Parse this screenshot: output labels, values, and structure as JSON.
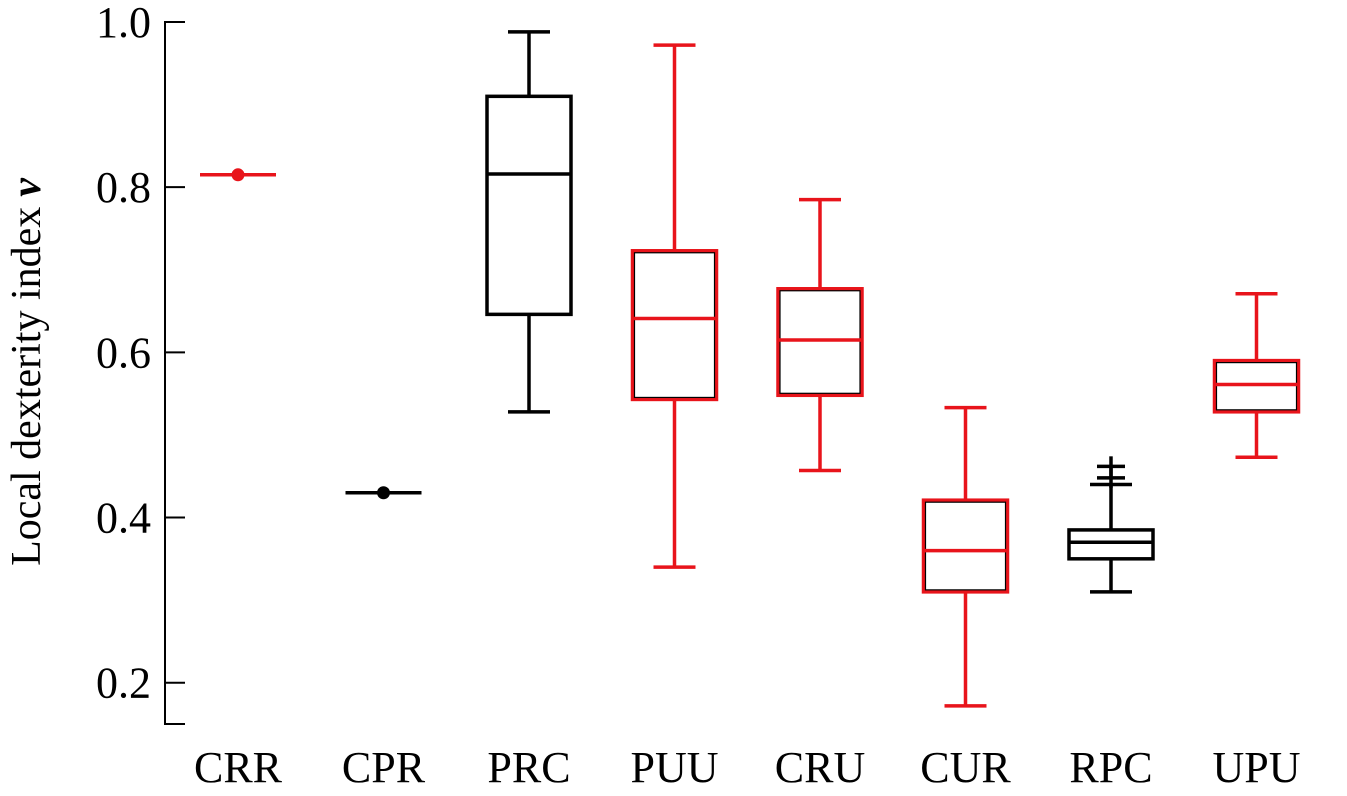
{
  "chart_data": {
    "type": "box",
    "title": "",
    "xlabel": "",
    "ylabel": "Local dexterity index",
    "ylabel_symbol": "v",
    "ylim": [
      0.15,
      1.0
    ],
    "yticks": [
      "0.2",
      "0.4",
      "0.6",
      "0.8",
      "1.0"
    ],
    "grid": false,
    "categories": [
      "CRR",
      "CPR",
      "PRC",
      "PUU",
      "CRU",
      "CUR",
      "RPC",
      "UPU"
    ],
    "series": [
      {
        "category": "CRR",
        "kind": "point",
        "value": 0.815,
        "color": "#e8141b"
      },
      {
        "category": "CPR",
        "kind": "point",
        "value": 0.43,
        "color": "#000000"
      },
      {
        "category": "PRC",
        "kind": "box",
        "min": 0.528,
        "q1": 0.646,
        "median": 0.816,
        "q3": 0.91,
        "max": 0.988,
        "color": "#000000"
      },
      {
        "category": "PUU",
        "kind": "box",
        "min": 0.34,
        "q1": 0.543,
        "median": 0.641,
        "q3": 0.723,
        "max": 0.972,
        "color": "#e8141b"
      },
      {
        "category": "CRU",
        "kind": "box",
        "min": 0.457,
        "q1": 0.548,
        "median": 0.615,
        "q3": 0.677,
        "max": 0.785,
        "color": "#e8141b"
      },
      {
        "category": "CUR",
        "kind": "box",
        "min": 0.172,
        "q1": 0.31,
        "median": 0.36,
        "q3": 0.421,
        "max": 0.533,
        "color": "#e8141b"
      },
      {
        "category": "RPC",
        "kind": "box",
        "min": 0.31,
        "q1": 0.35,
        "median": 0.37,
        "q3": 0.385,
        "max": 0.44,
        "outliers": [
          0.448,
          0.462
        ],
        "color": "#000000"
      },
      {
        "category": "UPU",
        "kind": "box",
        "min": 0.473,
        "q1": 0.528,
        "median": 0.561,
        "q3": 0.59,
        "max": 0.671,
        "color": "#e8141b"
      }
    ]
  }
}
